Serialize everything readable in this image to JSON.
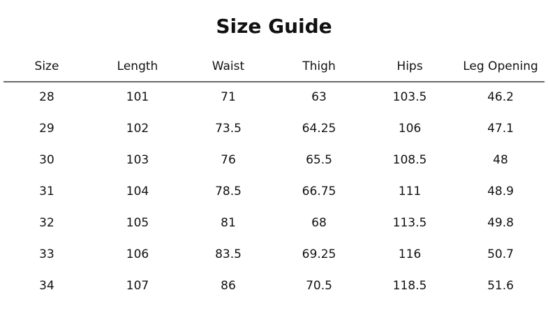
{
  "title": "Size Guide",
  "columns": [
    "Size",
    "Length",
    "Waist",
    "Thigh",
    "Hips",
    "Leg Opening"
  ],
  "rows": [
    [
      "28",
      "101",
      "71",
      "63",
      "103.5",
      "46.2"
    ],
    [
      "29",
      "102",
      "73.5",
      "64.25",
      "106",
      "47.1"
    ],
    [
      "30",
      "103",
      "76",
      "65.5",
      "108.5",
      "48"
    ],
    [
      "31",
      "104",
      "78.5",
      "66.75",
      "111",
      "48.9"
    ],
    [
      "32",
      "105",
      "81",
      "68",
      "113.5",
      "49.8"
    ],
    [
      "33",
      "106",
      "83.5",
      "69.25",
      "116",
      "50.7"
    ],
    [
      "34",
      "107",
      "86",
      "70.5",
      "118.5",
      "51.6"
    ]
  ]
}
